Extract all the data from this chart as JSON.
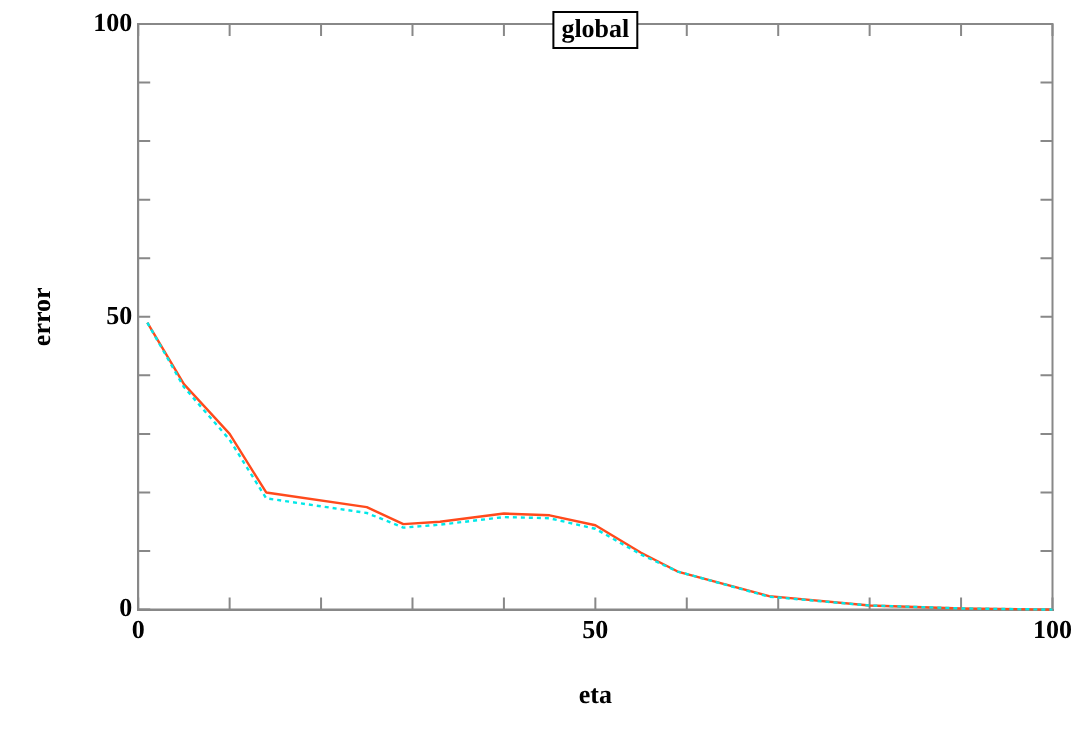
{
  "chart_data": {
    "type": "line",
    "title": "global",
    "xlabel": "eta",
    "ylabel": "error",
    "x": [
      1,
      5,
      10,
      14,
      25,
      29,
      33,
      40,
      45,
      50,
      55,
      59,
      69,
      80,
      90,
      100
    ],
    "series": [
      {
        "color": "#ff4a1c",
        "line_style": "solid",
        "values": [
          49,
          38.5,
          30,
          20,
          17.5,
          14.6,
          15,
          16.4,
          16.1,
          14.4,
          9.7,
          6.5,
          2.3,
          0.7,
          0.2,
          0
        ]
      },
      {
        "color": "#00e8e8",
        "line_style": "dotted",
        "values": [
          49,
          38,
          29,
          19,
          16.5,
          14,
          14.5,
          15.8,
          15.6,
          13.8,
          9.4,
          6.5,
          2.2,
          0.7,
          0.2,
          0
        ]
      }
    ],
    "xlim": [
      0,
      100
    ],
    "ylim": [
      0,
      100
    ],
    "xticks": [
      0,
      {
        "value": 10,
        "label": null
      },
      {
        "value": 20,
        "label": null
      },
      {
        "value": 30,
        "label": null
      },
      {
        "value": 40,
        "label": null
      },
      50,
      {
        "value": 60,
        "label": null
      },
      {
        "value": 70,
        "label": null
      },
      {
        "value": 80,
        "label": null
      },
      {
        "value": 90,
        "label": null
      },
      100
    ],
    "yticks": [
      0,
      {
        "value": 10,
        "label": null
      },
      {
        "value": 20,
        "label": null
      },
      {
        "value": 30,
        "label": null
      },
      {
        "value": 40,
        "label": null
      },
      50,
      {
        "value": 60,
        "label": null
      },
      {
        "value": 70,
        "label": null
      },
      {
        "value": 80,
        "label": null
      },
      {
        "value": 90,
        "label": null
      },
      100
    ],
    "grid": false,
    "legend": false,
    "marker": "none"
  }
}
